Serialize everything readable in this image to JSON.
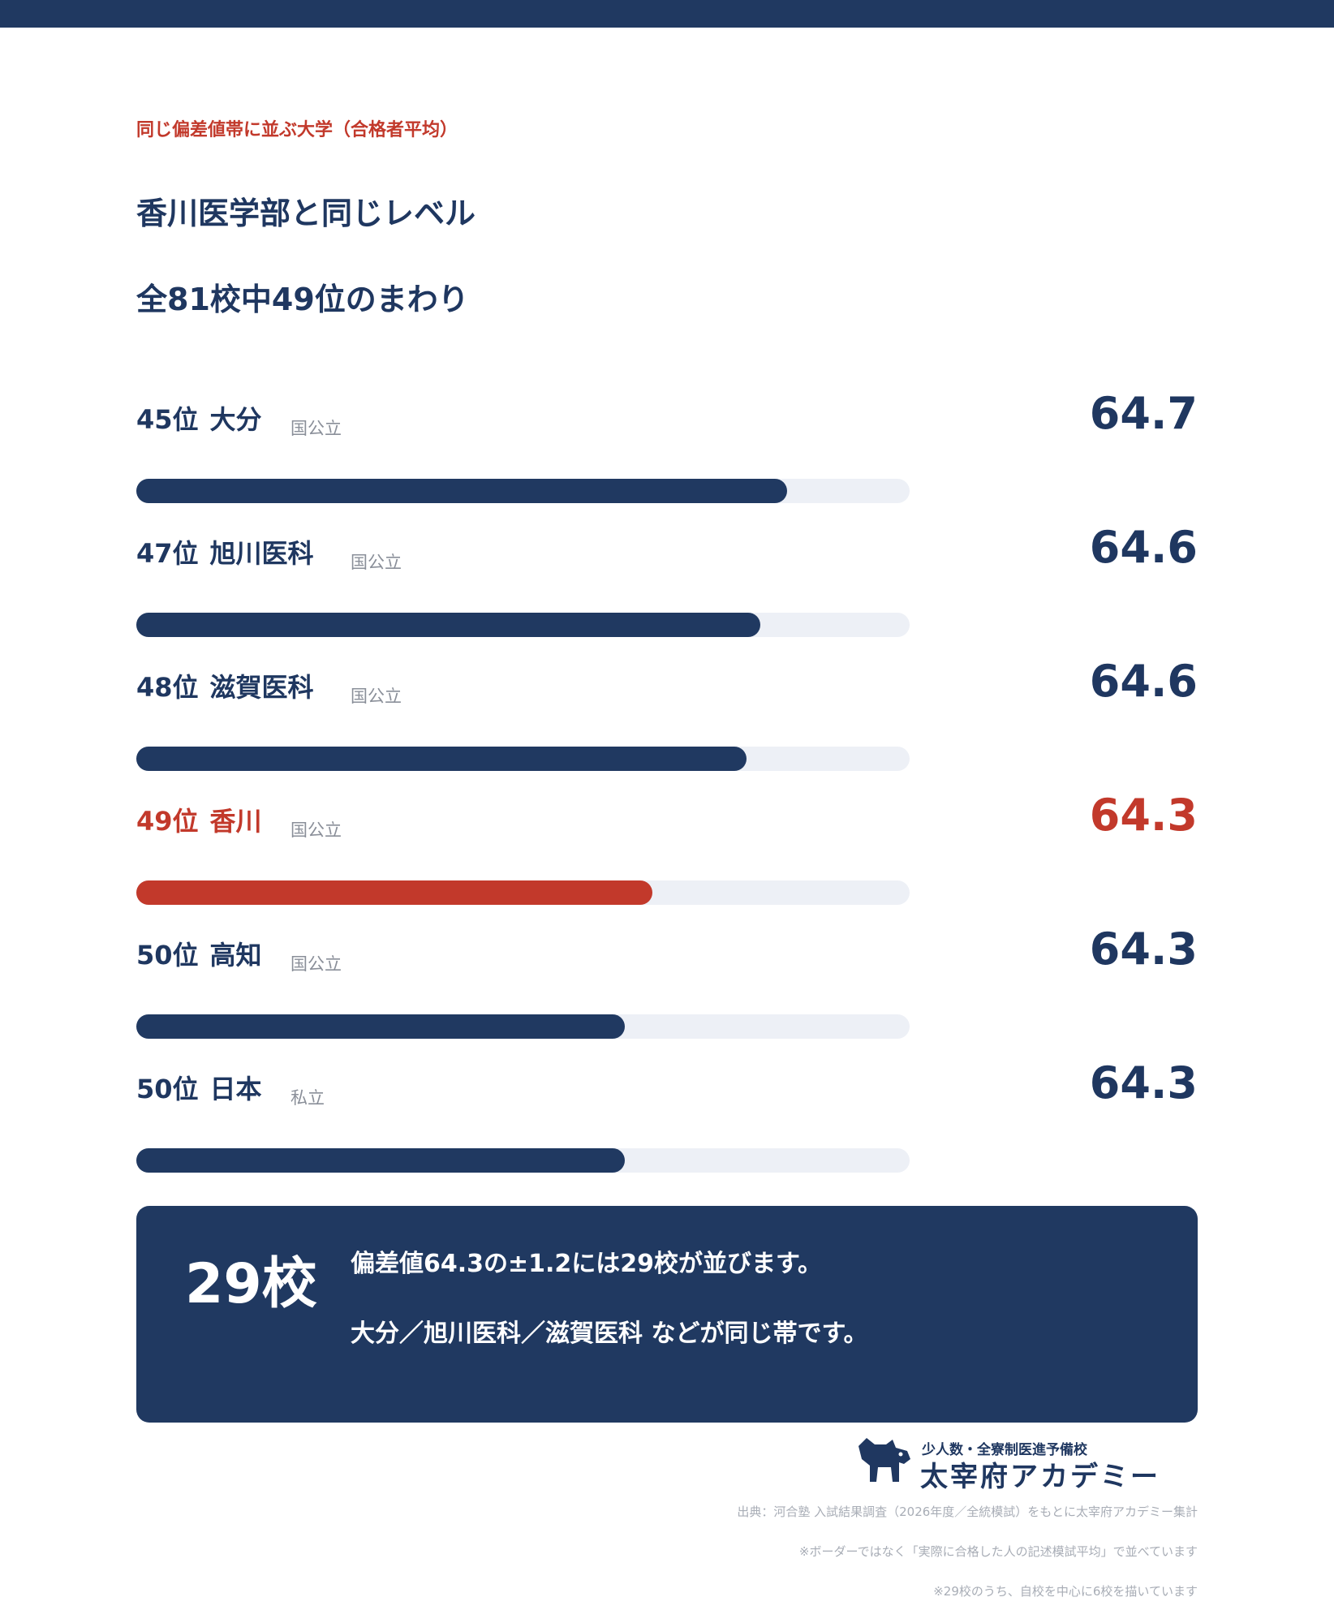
{
  "header": {
    "eyebrow": "同じ偏差値帯に並ぶ大学（合格者平均）",
    "title_line1": "香川医学部と同じレベル",
    "title_line2": "全81校中49位のまわり"
  },
  "chart_data": {
    "type": "bar",
    "orientation": "horizontal",
    "rows": [
      {
        "rank": "45位",
        "name": "大分",
        "type": "国公立",
        "value": 64.7,
        "display": "64.7",
        "highlight": false
      },
      {
        "rank": "47位",
        "name": "旭川医科",
        "type": "国公立",
        "value": 64.6,
        "display": "64.6",
        "highlight": false
      },
      {
        "rank": "48位",
        "name": "滋賀医科",
        "type": "国公立",
        "value": 64.6,
        "display": "64.6",
        "highlight": false
      },
      {
        "rank": "49位",
        "name": "香川",
        "type": "国公立",
        "value": 64.3,
        "display": "64.3",
        "highlight": true
      },
      {
        "rank": "50位",
        "name": "高知",
        "type": "国公立",
        "value": 64.3,
        "display": "64.3",
        "highlight": false
      },
      {
        "rank": "50位",
        "name": "日本",
        "type": "私立",
        "value": 64.3,
        "display": "64.3",
        "highlight": false
      }
    ],
    "bar_fill_fraction": [
      0.842,
      0.807,
      0.789,
      0.667,
      0.632,
      0.632
    ],
    "colors": {
      "default": "#203961",
      "highlight": "#c2392b",
      "track": "#edf0f6"
    }
  },
  "summary": {
    "count": "29校",
    "line1": "偏差値64.3の±1.2には29校が並びます。",
    "line2": "大分／旭川医科／滋賀医科 などが同じ帯です。"
  },
  "brand": {
    "tagline": "少人数・全寮制医進予備校",
    "name": "太宰府アカデミー"
  },
  "footnotes": [
    "出典：河合塾 入試結果調査（2026年度／全統模試）をもとに太宰府アカデミー集計",
    "※ボーダーではなく「実際に合格した人の記述模試平均」で並べています",
    "※29校のうち、自校を中心に6校を描いています"
  ],
  "colors": {
    "navy": "#203961",
    "accent_red": "#c2392b",
    "muted": "#a8adb6"
  }
}
